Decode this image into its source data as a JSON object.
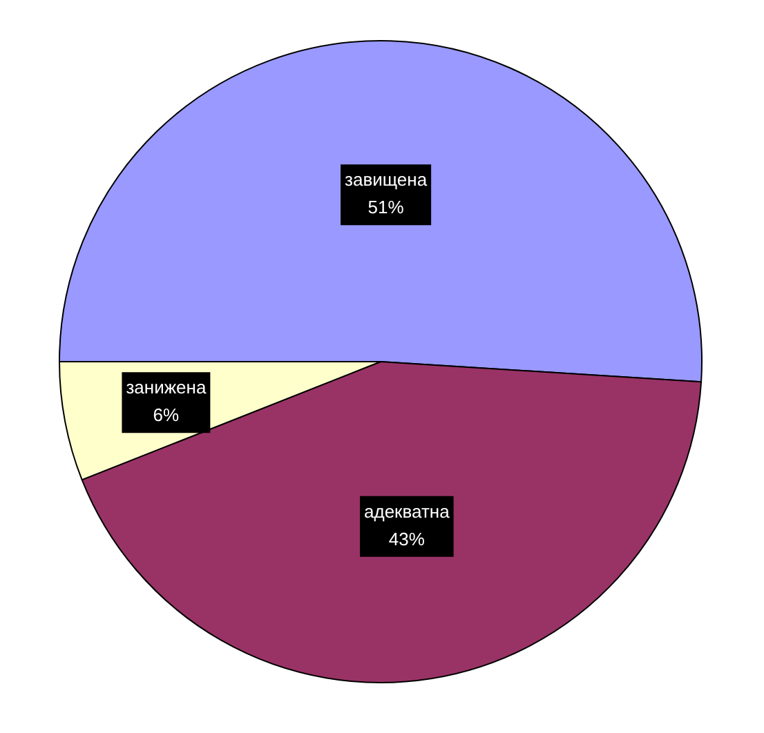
{
  "chart_data": {
    "type": "pie",
    "categories": [
      "завищена",
      "адекватна",
      "занижена"
    ],
    "values": [
      51,
      43,
      6
    ],
    "colors": [
      "#9999ff",
      "#993366",
      "#ffffcc"
    ],
    "value_labels": [
      "51%",
      "43%",
      "6%"
    ],
    "legend": false
  }
}
